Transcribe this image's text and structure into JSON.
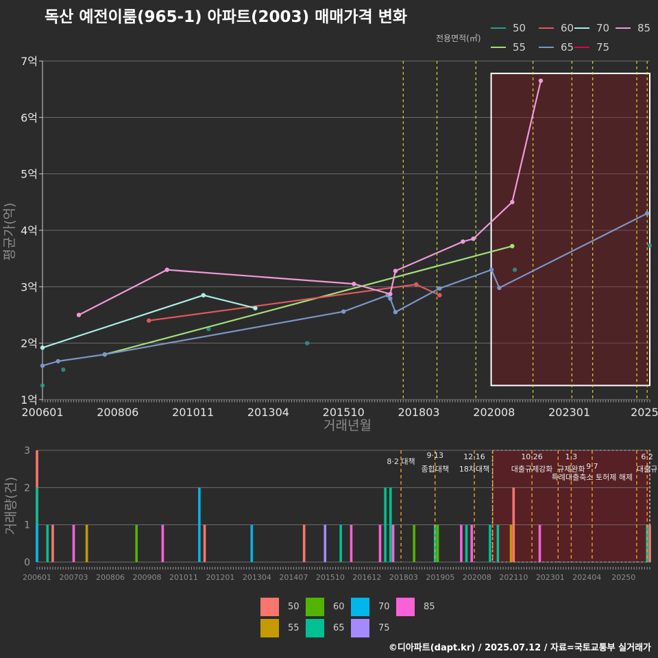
{
  "title": "독산 예전이룸(965-1) 아파트(2003) 매매가격 변화",
  "legend_title": "전용면적(㎡)",
  "legend_items": [
    {
      "label": "50",
      "color": "#2a9d8f"
    },
    {
      "label": "55",
      "color": "#a3e07a"
    },
    {
      "label": "60",
      "color": "#e05a5a"
    },
    {
      "label": "65",
      "color": "#7b96c9"
    },
    {
      "label": "70",
      "color": "#a8efe6"
    },
    {
      "label": "75",
      "color": "#e3004f"
    },
    {
      "label": "85",
      "color": "#f09ad8"
    }
  ],
  "bar_legend_items": [
    {
      "label": "50",
      "color": "#f8766d"
    },
    {
      "label": "55",
      "color": "#c49a00"
    },
    {
      "label": "60",
      "color": "#53b400"
    },
    {
      "label": "65",
      "color": "#00c094"
    },
    {
      "label": "70",
      "color": "#00b6eb"
    },
    {
      "label": "75",
      "color": "#a58aff"
    },
    {
      "label": "85",
      "color": "#fb61d7"
    }
  ],
  "footer": "©디아파트(dapt.kr) / 2025.07.12 / 자료=국토교통부 실거래가",
  "chart_data": [
    {
      "type": "line",
      "xlabel": "거래년월",
      "ylabel": "평균가(억)",
      "x_ticks": [
        "200601",
        "200806",
        "201011",
        "201304",
        "201510",
        "201803",
        "202008",
        "202301",
        "2025"
      ],
      "y_ticks": [
        "1억",
        "2억",
        "3억",
        "4억",
        "5억",
        "6억",
        "7억"
      ],
      "ylim": [
        1,
        7
      ],
      "xlim": [
        "2006-01",
        "2025-07"
      ],
      "grid": true,
      "policy_lines": [
        "2017-08",
        "2018-09",
        "2019-12",
        "2021-10",
        "2023-01",
        "2023-09",
        "2025-02",
        "2025-06"
      ],
      "highlight_range": [
        "2020-08",
        "2025-07"
      ],
      "highlight_ylim": [
        1.25,
        6.78
      ],
      "series": [
        {
          "name": "50",
          "lines": false,
          "points": [
            {
              "x": "2006-01",
              "y": 1.25
            },
            {
              "x": "2006-09",
              "y": 1.53
            },
            {
              "x": "2011-05",
              "y": 2.25
            },
            {
              "x": "2014-07",
              "y": 2.0
            },
            {
              "x": "2021-03",
              "y": 3.3
            },
            {
              "x": "2025-07",
              "y": 3.73
            }
          ]
        },
        {
          "name": "55",
          "lines": true,
          "points": [
            {
              "x": "2008-01",
              "y": 1.8
            },
            {
              "x": "2021-02",
              "y": 3.72
            }
          ]
        },
        {
          "name": "60",
          "lines": true,
          "points": [
            {
              "x": "2009-06",
              "y": 2.4
            },
            {
              "x": "2018-01",
              "y": 3.04
            },
            {
              "x": "2018-10",
              "y": 2.85
            }
          ]
        },
        {
          "name": "65",
          "lines": true,
          "points": [
            {
              "x": "2006-01",
              "y": 1.6
            },
            {
              "x": "2006-07",
              "y": 1.68
            },
            {
              "x": "2008-01",
              "y": 1.8
            },
            {
              "x": "2015-09",
              "y": 2.56
            },
            {
              "x": "2017-02",
              "y": 2.85
            },
            {
              "x": "2017-03",
              "y": 2.79
            },
            {
              "x": "2017-05",
              "y": 2.55
            },
            {
              "x": "2018-10",
              "y": 2.97
            },
            {
              "x": "2020-06",
              "y": 3.3
            },
            {
              "x": "2020-09",
              "y": 2.98
            },
            {
              "x": "2025-06",
              "y": 4.3
            }
          ]
        },
        {
          "name": "70",
          "lines": true,
          "points": [
            {
              "x": "2006-01",
              "y": 1.92
            },
            {
              "x": "2011-03",
              "y": 2.85
            },
            {
              "x": "2012-11",
              "y": 2.62
            }
          ]
        },
        {
          "name": "85",
          "lines": true,
          "points": [
            {
              "x": "2007-03",
              "y": 2.5
            },
            {
              "x": "2010-01",
              "y": 3.3
            },
            {
              "x": "2016-01",
              "y": 3.05
            },
            {
              "x": "2017-03",
              "y": 2.87
            },
            {
              "x": "2017-05",
              "y": 3.28
            },
            {
              "x": "2019-07",
              "y": 3.8
            },
            {
              "x": "2019-11",
              "y": 3.85
            },
            {
              "x": "2021-02",
              "y": 4.5
            },
            {
              "x": "2022-01",
              "y": 6.65
            }
          ]
        }
      ]
    },
    {
      "type": "bar",
      "xlabel": "",
      "ylabel": "거래량(건)",
      "x_ticks": [
        "200601",
        "200703",
        "200806",
        "200908",
        "201011",
        "201201",
        "201304",
        "201407",
        "201510",
        "201612",
        "201803",
        "201905",
        "202008",
        "202110",
        "202301",
        "202404",
        "20250"
      ],
      "y_ticks": [
        "0",
        "1",
        "2",
        "3"
      ],
      "ylim": [
        0,
        3
      ],
      "grid": true,
      "highlight_range": [
        "2020-08",
        "2025-07"
      ],
      "policy_lines": [
        "2017-08",
        "2018-09",
        "2019-12",
        "2020-07",
        "2021-10",
        "2022-08",
        "2023-01",
        "2023-09",
        "2025-02",
        "2025-06"
      ],
      "policy_labels": [
        {
          "date": "2017-08",
          "line1": "8·2 대책",
          "line2": ""
        },
        {
          "date": "2018-09",
          "line1": "9·13",
          "line2": "종합대책"
        },
        {
          "date": "2019-12",
          "line1": "12·16",
          "line2": "18차대책"
        },
        {
          "date": "2021-10",
          "line1": "10·26",
          "line2": "대출규제강화"
        },
        {
          "date": "2023-01",
          "line1": "1·3",
          "line2": "규제완화"
        },
        {
          "date": "2023-09",
          "line1": "9·7",
          "line2": "특례대출축소 토허제 해제"
        },
        {
          "date": "2025-06",
          "line1": "6·2",
          "line2": "대출규"
        }
      ],
      "bars": [
        {
          "x": "2006-01",
          "series": "50",
          "y": 3
        },
        {
          "x": "2006-01",
          "series": "65",
          "y": 2
        },
        {
          "x": "2006-01",
          "series": "70",
          "y": 1
        },
        {
          "x": "2006-05",
          "series": "65",
          "y": 1
        },
        {
          "x": "2006-07",
          "series": "50",
          "y": 1
        },
        {
          "x": "2007-03",
          "series": "85",
          "y": 1
        },
        {
          "x": "2007-08",
          "series": "55",
          "y": 1
        },
        {
          "x": "2009-03",
          "series": "60",
          "y": 1
        },
        {
          "x": "2010-01",
          "series": "85",
          "y": 1
        },
        {
          "x": "2011-03",
          "series": "70",
          "y": 2
        },
        {
          "x": "2011-05",
          "series": "50",
          "y": 1
        },
        {
          "x": "2012-11",
          "series": "70",
          "y": 1
        },
        {
          "x": "2014-07",
          "series": "50",
          "y": 1
        },
        {
          "x": "2015-03",
          "series": "75",
          "y": 1
        },
        {
          "x": "2015-09",
          "series": "65",
          "y": 1
        },
        {
          "x": "2016-01",
          "series": "85",
          "y": 1
        },
        {
          "x": "2016-12",
          "series": "85",
          "y": 1
        },
        {
          "x": "2017-02",
          "series": "65",
          "y": 2
        },
        {
          "x": "2017-04",
          "series": "65",
          "y": 2
        },
        {
          "x": "2017-05",
          "series": "85",
          "y": 1
        },
        {
          "x": "2018-01",
          "series": "60",
          "y": 1
        },
        {
          "x": "2018-09",
          "series": "65",
          "y": 1
        },
        {
          "x": "2018-10",
          "series": "60",
          "y": 1
        },
        {
          "x": "2019-07",
          "series": "85",
          "y": 1
        },
        {
          "x": "2019-09",
          "series": "65",
          "y": 1
        },
        {
          "x": "2019-11",
          "series": "85",
          "y": 1
        },
        {
          "x": "2020-06",
          "series": "65",
          "y": 1
        },
        {
          "x": "2020-09",
          "series": "65",
          "y": 1
        },
        {
          "x": "2021-02",
          "series": "55",
          "y": 1
        },
        {
          "x": "2021-03",
          "series": "50",
          "y": 2
        },
        {
          "x": "2022-01",
          "series": "85",
          "y": 1
        },
        {
          "x": "2025-06",
          "series": "65",
          "y": 1
        },
        {
          "x": "2025-07",
          "series": "50",
          "y": 1
        }
      ]
    }
  ]
}
